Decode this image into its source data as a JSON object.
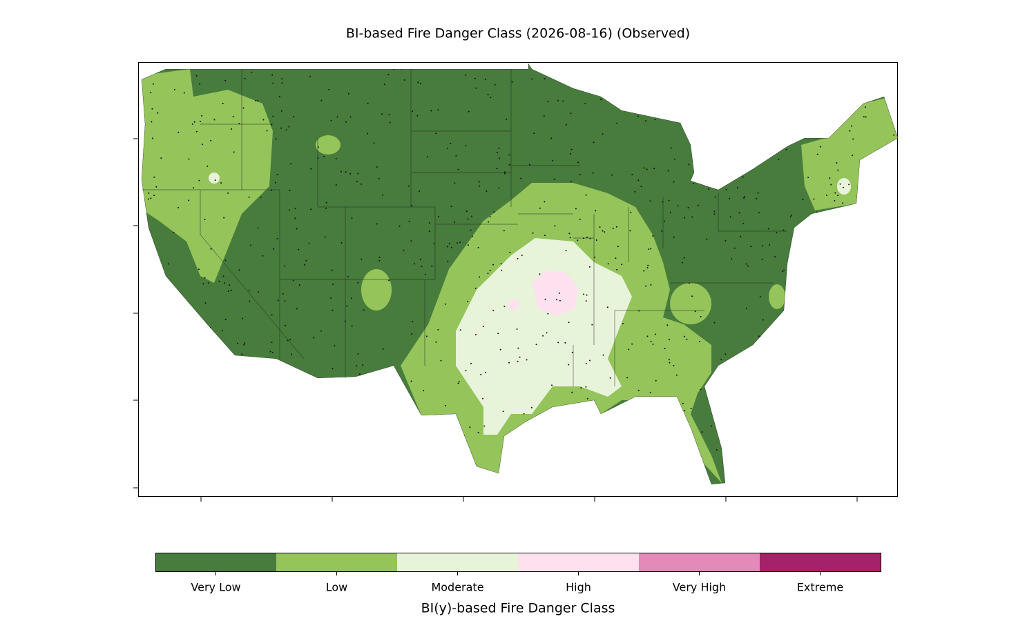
{
  "title": "BI-based Fire Danger Class (2026-08-16) (Observed)",
  "colorbar": {
    "label": "BI(y)-based Fire Danger Class",
    "classes": [
      {
        "label": "Very Low",
        "color": "#477c3c"
      },
      {
        "label": "Low",
        "color": "#94c45a"
      },
      {
        "label": "Moderate",
        "color": "#e8f4da"
      },
      {
        "label": "High",
        "color": "#fde1ee"
      },
      {
        "label": "Very High",
        "color": "#e28ab8"
      },
      {
        "label": "Extreme",
        "color": "#a2236a"
      }
    ]
  }
}
